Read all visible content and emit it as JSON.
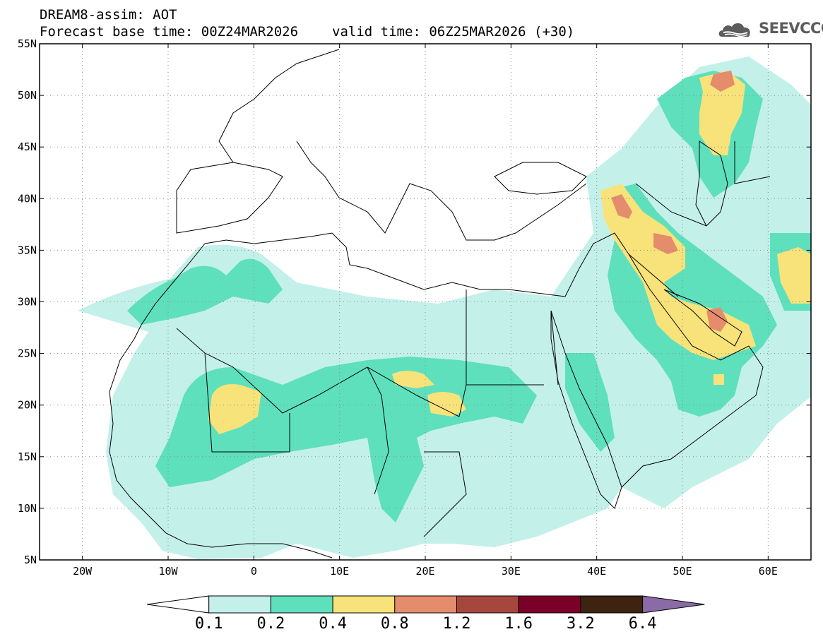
{
  "header": {
    "line1": "DREAM8-assim: AOT",
    "base_time": "Forecast base time: 00Z24MAR2026",
    "valid_time": "valid time: 06Z25MAR2026 (+30)"
  },
  "logo": {
    "text": "SEEVCCC",
    "icon": "cloud-icon"
  },
  "map": {
    "extent": {
      "lon": [
        -25,
        65
      ],
      "lat": [
        5,
        55
      ]
    },
    "lat_ticks": [
      {
        "value": 55,
        "label": "55N"
      },
      {
        "value": 50,
        "label": "50N"
      },
      {
        "value": 45,
        "label": "45N"
      },
      {
        "value": 40,
        "label": "40N"
      },
      {
        "value": 35,
        "label": "35N"
      },
      {
        "value": 30,
        "label": "30N"
      },
      {
        "value": 25,
        "label": "25N"
      },
      {
        "value": 20,
        "label": "20N"
      },
      {
        "value": 15,
        "label": "15N"
      },
      {
        "value": 10,
        "label": "10N"
      },
      {
        "value": 5,
        "label": "5N"
      }
    ],
    "lon_ticks": [
      {
        "value": -20,
        "label": "20W"
      },
      {
        "value": -10,
        "label": "10W"
      },
      {
        "value": 0,
        "label": "0"
      },
      {
        "value": 10,
        "label": "10E"
      },
      {
        "value": 20,
        "label": "20E"
      },
      {
        "value": 30,
        "label": "30E"
      },
      {
        "value": 40,
        "label": "40E"
      },
      {
        "value": 50,
        "label": "50E"
      },
      {
        "value": 60,
        "label": "60E"
      }
    ],
    "grid": "dotted"
  },
  "colorbar": {
    "colors": [
      "#ffffff",
      "#c4f0ea",
      "#5ee0bd",
      "#f8e37a",
      "#e58c6c",
      "#a6473e",
      "#7b0028",
      "#3e2310",
      "#8a6ba5"
    ],
    "labels": [
      "0.1",
      "0.2",
      "0.4",
      "0.8",
      "1.2",
      "1.6",
      "3.2",
      "6.4"
    ]
  }
}
